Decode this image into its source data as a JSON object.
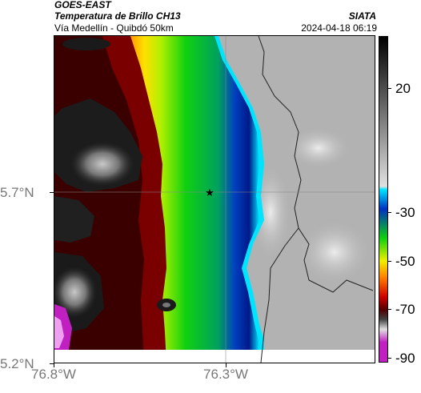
{
  "header": {
    "satellite": "GOES-EAST",
    "product": "Temperatura de Brillo CH13",
    "organization": "SIATA",
    "region": "Vía Medellín - Quibdó 50km",
    "timestamp": "2024-04-18 06:19"
  },
  "map": {
    "x_ticks": [
      "76.8°W",
      "76.3°W"
    ],
    "y_ticks": [
      "5.7°N",
      "5.2°N"
    ],
    "marker": "star-marker",
    "gridlines": true
  },
  "colorbar": {
    "labels": [
      "20",
      "-30",
      "-50",
      "-70",
      "-90"
    ],
    "colors": {
      "black": "#000000",
      "dark_gray": "#444444",
      "light_gray": "#e0e0e0",
      "cyan": "#00e5ff",
      "blue": "#0030c0",
      "green": "#10d010",
      "yellow": "#f0f000",
      "orange": "#ff8000",
      "red": "#d00000",
      "dark_red": "#500000",
      "magenta": "#c020c0"
    }
  }
}
